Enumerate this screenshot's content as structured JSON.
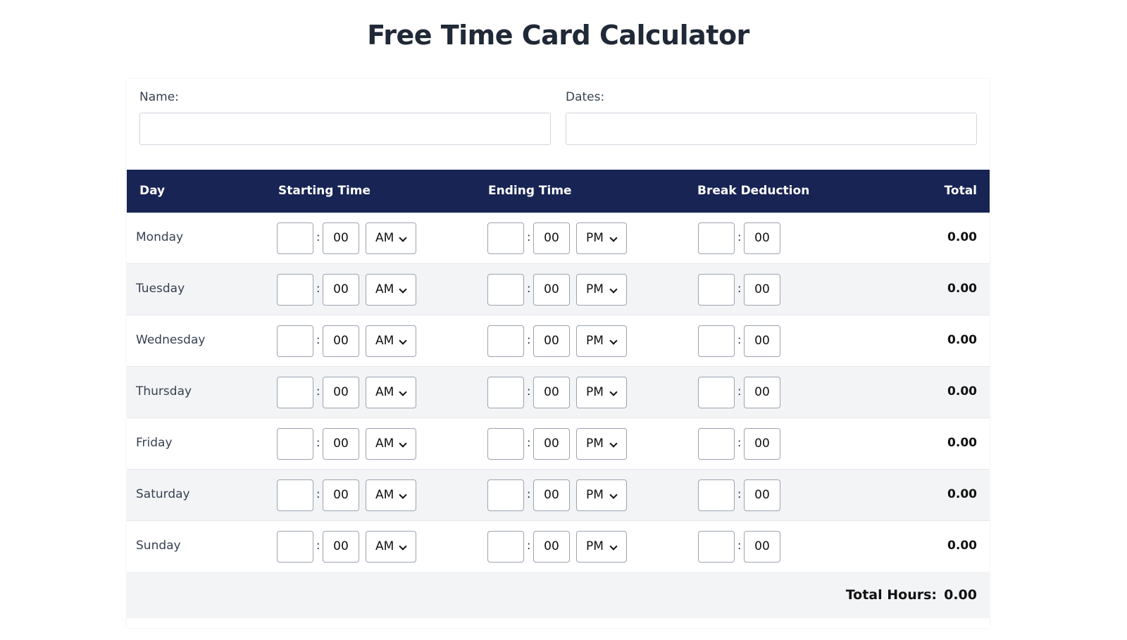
{
  "title": "Free Time Card Calculator",
  "form": {
    "name_label": "Name:",
    "name_value": "",
    "dates_label": "Dates:",
    "dates_value": ""
  },
  "table": {
    "headers": [
      "Day",
      "Starting Time",
      "Ending Time",
      "Break Deduction",
      "Total"
    ],
    "rows": [
      {
        "day": "Monday",
        "start_hour": "",
        "start_min": "00",
        "start_ampm": "AM",
        "end_hour": "",
        "end_min": "00",
        "end_ampm": "PM",
        "break_hour": "",
        "break_min": "00",
        "total": "0.00"
      },
      {
        "day": "Tuesday",
        "start_hour": "",
        "start_min": "00",
        "start_ampm": "AM",
        "end_hour": "",
        "end_min": "00",
        "end_ampm": "PM",
        "break_hour": "",
        "break_min": "00",
        "total": "0.00"
      },
      {
        "day": "Wednesday",
        "start_hour": "",
        "start_min": "00",
        "start_ampm": "AM",
        "end_hour": "",
        "end_min": "00",
        "end_ampm": "PM",
        "break_hour": "",
        "break_min": "00",
        "total": "0.00"
      },
      {
        "day": "Thursday",
        "start_hour": "",
        "start_min": "00",
        "start_ampm": "AM",
        "end_hour": "",
        "end_min": "00",
        "end_ampm": "PM",
        "break_hour": "",
        "break_min": "00",
        "total": "0.00"
      },
      {
        "day": "Friday",
        "start_hour": "",
        "start_min": "00",
        "start_ampm": "AM",
        "end_hour": "",
        "end_min": "00",
        "end_ampm": "PM",
        "break_hour": "",
        "break_min": "00",
        "total": "0.00"
      },
      {
        "day": "Saturday",
        "start_hour": "",
        "start_min": "00",
        "start_ampm": "AM",
        "end_hour": "",
        "end_min": "00",
        "end_ampm": "PM",
        "break_hour": "",
        "break_min": "00",
        "total": "0.00"
      },
      {
        "day": "Sunday",
        "start_hour": "",
        "start_min": "00",
        "start_ampm": "AM",
        "end_hour": "",
        "end_min": "00",
        "end_ampm": "PM",
        "break_hour": "",
        "break_min": "00",
        "total": "0.00"
      }
    ],
    "separator": ":",
    "total_hours_label": "Total Hours:",
    "total_hours_value": "0.00"
  },
  "colors": {
    "header_bg": "#182454",
    "stripe": "#f3f4f6"
  }
}
